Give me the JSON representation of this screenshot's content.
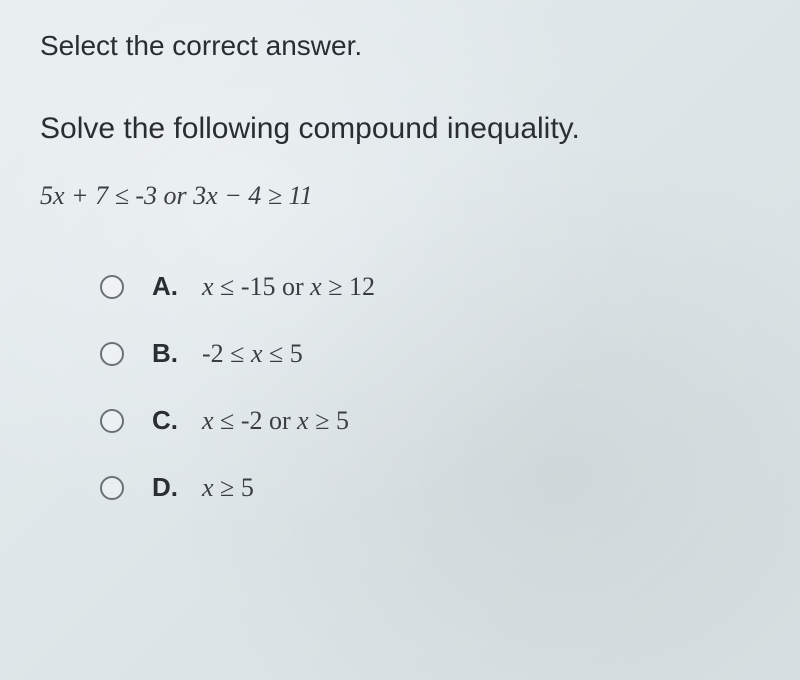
{
  "instruction": "Select the correct answer.",
  "question": "Solve the following compound inequality.",
  "inequality_html": "5<span class='var'>x</span> + 7 ≤ -3 or 3<span class='var'>x</span> − 4 ≥ 11",
  "options": [
    {
      "letter": "A.",
      "html": "<span class='var'>x</span> ≤ -15 or <span class='var'>x</span> ≥ 12"
    },
    {
      "letter": "B.",
      "html": "-2 ≤ <span class='var'>x</span> ≤ 5"
    },
    {
      "letter": "C.",
      "html": "<span class='var'>x</span> ≤ -2 or <span class='var'>x</span> ≥ 5"
    },
    {
      "letter": "D.",
      "html": "<span class='var'>x</span> ≥ 5"
    }
  ],
  "colors": {
    "text_primary": "#2a2e33",
    "text_secondary": "#3a3e43",
    "radio_border": "#6a7278",
    "bg_start": "#e8eef0",
    "bg_end": "#d8e0e3"
  }
}
